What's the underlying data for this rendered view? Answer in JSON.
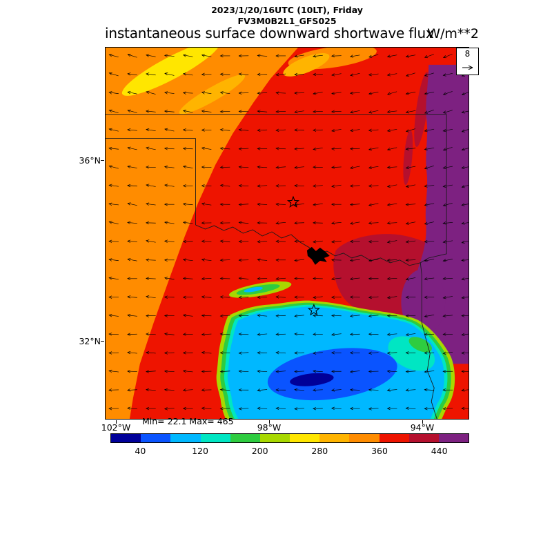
{
  "header": {
    "line1": "2023/1/20/16UTC (10LT), Friday",
    "line2": "FV3M0B2L1_GFS025"
  },
  "title": {
    "text": "instantaneous surface downward shortwave flux",
    "units": "W/m**2"
  },
  "map": {
    "lat_labels": [
      {
        "label": "36°N"
      },
      {
        "label": "32°N"
      }
    ],
    "lon_labels": [
      {
        "label": "102°W"
      },
      {
        "label": "98°W"
      },
      {
        "label": "94°W"
      }
    ],
    "stats": "Min= 22.1 Max= 465",
    "vector_legend": {
      "value": "8"
    }
  },
  "colorbar": {
    "tick_labels": [
      "40",
      "120",
      "200",
      "280",
      "360",
      "440"
    ],
    "colors": [
      "#000099",
      "#0a54ff",
      "#00b8ff",
      "#00e6c3",
      "#2ecc40",
      "#a8d800",
      "#ffe600",
      "#ffb400",
      "#ff8c00",
      "#ee1400",
      "#b5102e",
      "#7d2181"
    ]
  },
  "wind": {
    "spacing": 27,
    "length": 14,
    "reference": "8"
  },
  "chart_data": {
    "type": "heatmap",
    "title": "instantaneous surface downward shortwave flux",
    "units": "W/m**2",
    "valid_time": "2023/1/20/16UTC (10LT), Friday",
    "model_run": "FV3M0B2L1_GFS025",
    "min": 22.1,
    "max": 465,
    "lon_ticks": [
      "102°W",
      "98°W",
      "94°W"
    ],
    "lat_ticks": [
      "36°N",
      "32°N"
    ],
    "contour_levels": [
      0,
      40,
      80,
      120,
      160,
      200,
      240,
      280,
      320,
      360,
      400,
      440,
      480
    ],
    "wind_reference_m_s": 8,
    "wind_flow": "easterly to northeasterly (arrows point west/southwest across domain)",
    "features": [
      {
        "region": "northwest (TX/OK panhandles)",
        "value_range": "280-360",
        "color": "orange with yellow streaks at top"
      },
      {
        "region": "central and most of domain",
        "value_range": "360-400",
        "color": "red"
      },
      {
        "region": "east-central (east Texas)",
        "value_range": "400-440",
        "color": "dark red"
      },
      {
        "region": "eastern edge (Arkansas/Louisiana side)",
        "value_range": "440-480",
        "color": "purple"
      },
      {
        "region": "south-central cloud shield (north-central Texas)",
        "value_range": "40-200",
        "color": "blue core with cyan, teal, green and yellow-green fringes"
      }
    ]
  }
}
